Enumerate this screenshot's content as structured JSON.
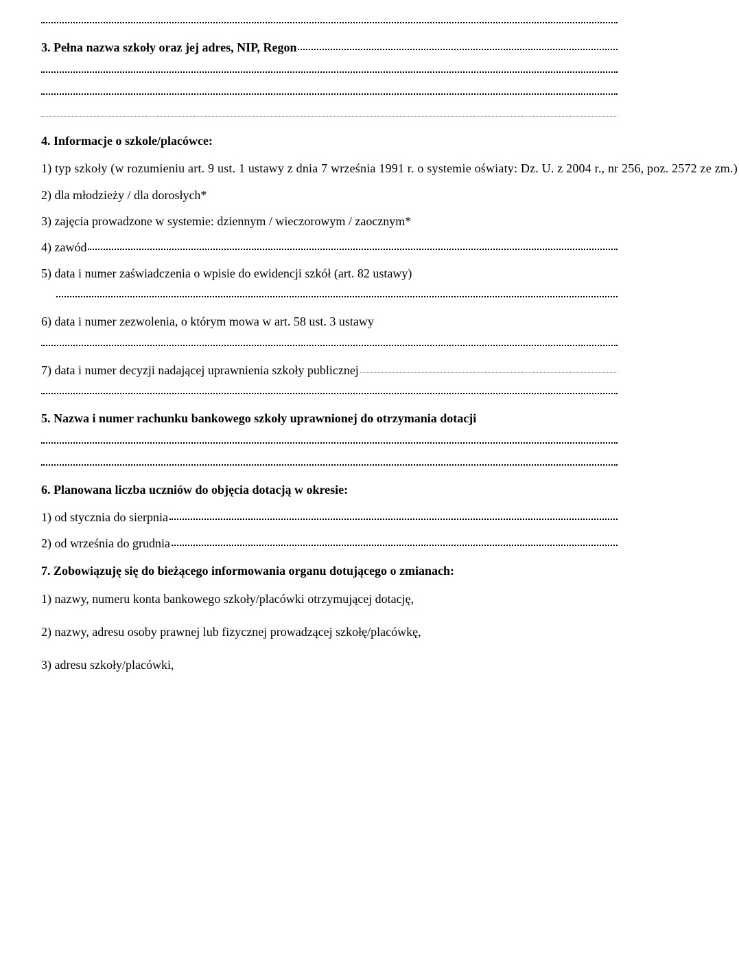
{
  "colors": {
    "text": "#000000",
    "background": "#ffffff",
    "dot_strong": "#000000",
    "dot_faint": "#888888"
  },
  "typography": {
    "font_family": "Times New Roman",
    "base_fontsize_pt": 13,
    "heading_weight": "bold",
    "body_weight": "normal",
    "line_height": 1.9
  },
  "sections": {
    "s3": {
      "heading_prefix": "3. Pełna nazwa szkoły oraz jej adres, NIP, Regon",
      "blank_lines_after": 3
    },
    "s4": {
      "heading": "4. Informacje o szkole/placówce:",
      "items": {
        "i1": "1) typ szkoły (w rozumieniu art. 9 ust. 1 ustawy z dnia 7 września 1991 r. o systemie oświaty: Dz. U. z 2004 r., nr 256, poz. 2572 ze zm.)",
        "i2": "2) dla młodzieży / dla dorosłych*",
        "i3": "3) zajęcia prowadzone w systemie: dziennym / wieczorowym / zaocznym*",
        "i4": "4) zawód",
        "i5": "5) data i numer zaświadczenia o wpisie do ewidencji szkół (art. 82 ustawy)",
        "i6": "6) data i numer zezwolenia, o którym mowa w art. 58 ust. 3 ustawy",
        "i7": "7) data i numer decyzji nadającej uprawnienia szkoły publicznej"
      }
    },
    "s5": {
      "heading": "5. Nazwa i numer rachunku bankowego szkoły uprawnionej do otrzymania dotacji",
      "blank_lines_after": 2
    },
    "s6": {
      "heading": "6. Planowana liczba uczniów do objęcia dotacją w okresie:",
      "items": {
        "i1": "1) od stycznia do sierpnia",
        "i2": "2) od września do grudnia"
      }
    },
    "s7": {
      "heading": "7. Zobowiązuję się do bieżącego informowania organu dotującego o zmianach:",
      "items": {
        "i1": "1) nazwy, numeru konta bankowego szkoły/placówki otrzymującej dotację,",
        "i2": "2) nazwy, adresu osoby prawnej lub fizycznej prowadzącej szkołę/placówkę,",
        "i3": "3) adresu szkoły/placówki,"
      }
    }
  }
}
